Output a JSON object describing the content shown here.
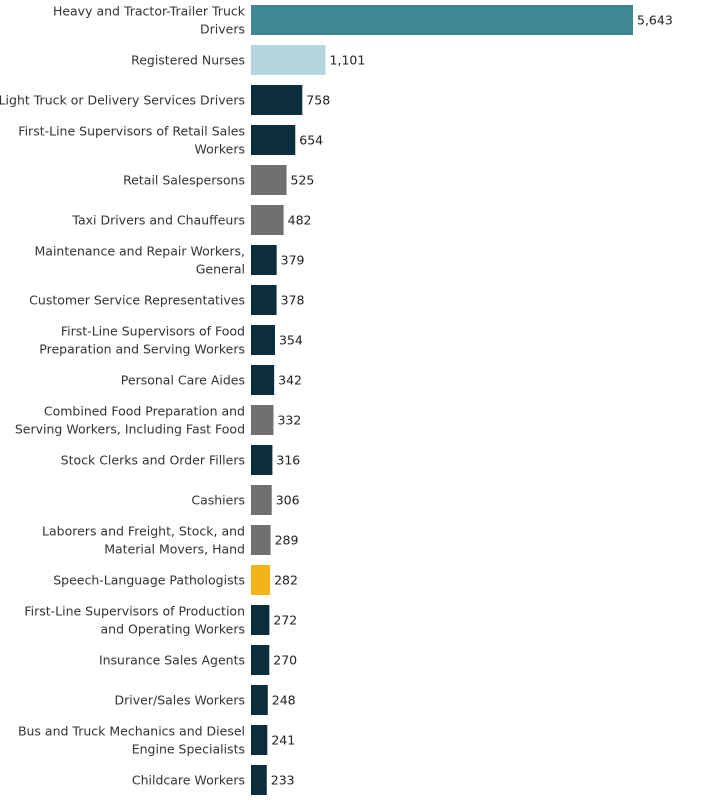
{
  "colors": {
    "teal": "#3f8793",
    "light_blue": "#b4d5dd",
    "navy": "#0c2d3c",
    "gray": "#707070",
    "gold": "#f2b31b"
  },
  "chart_data": {
    "type": "bar",
    "orientation": "horizontal",
    "title": "",
    "xlabel": "",
    "ylabel": "",
    "grid": false,
    "legend": "none",
    "xlim": [
      0,
      5643
    ],
    "categories": [
      [
        "Heavy and Tractor-Trailer Truck",
        "Drivers"
      ],
      [
        "Registered Nurses"
      ],
      [
        "Light Truck or Delivery Services Drivers"
      ],
      [
        "First-Line Supervisors of Retail Sales",
        "Workers"
      ],
      [
        "Retail Salespersons"
      ],
      [
        "Taxi Drivers and Chauffeurs"
      ],
      [
        "Maintenance and Repair Workers,",
        "General"
      ],
      [
        "Customer Service Representatives"
      ],
      [
        "First-Line Supervisors of Food",
        "Preparation and Serving Workers"
      ],
      [
        "Personal Care Aides"
      ],
      [
        "Combined Food Preparation and",
        "Serving Workers, Including Fast Food"
      ],
      [
        "Stock Clerks and Order Fillers"
      ],
      [
        "Cashiers"
      ],
      [
        "Laborers and Freight, Stock, and",
        "Material Movers, Hand"
      ],
      [
        "Speech-Language Pathologists"
      ],
      [
        "First-Line Supervisors of Production",
        "and Operating Workers"
      ],
      [
        "Insurance Sales Agents"
      ],
      [
        "Driver/Sales Workers"
      ],
      [
        "Bus and Truck Mechanics and Diesel",
        "Engine Specialists"
      ],
      [
        "Childcare Workers"
      ]
    ],
    "values": [
      5643,
      1101,
      758,
      654,
      525,
      482,
      379,
      378,
      354,
      342,
      332,
      316,
      306,
      289,
      282,
      272,
      270,
      248,
      241,
      233
    ],
    "value_labels": [
      "5,643",
      "1,101",
      "758",
      "654",
      "525",
      "482",
      "379",
      "378",
      "354",
      "342",
      "332",
      "316",
      "306",
      "289",
      "282",
      "272",
      "270",
      "248",
      "241",
      "233"
    ],
    "bar_colors": [
      "teal",
      "light_blue",
      "navy",
      "navy",
      "gray",
      "gray",
      "navy",
      "navy",
      "navy",
      "navy",
      "gray",
      "navy",
      "gray",
      "gray",
      "gold",
      "navy",
      "navy",
      "navy",
      "navy",
      "navy"
    ]
  }
}
